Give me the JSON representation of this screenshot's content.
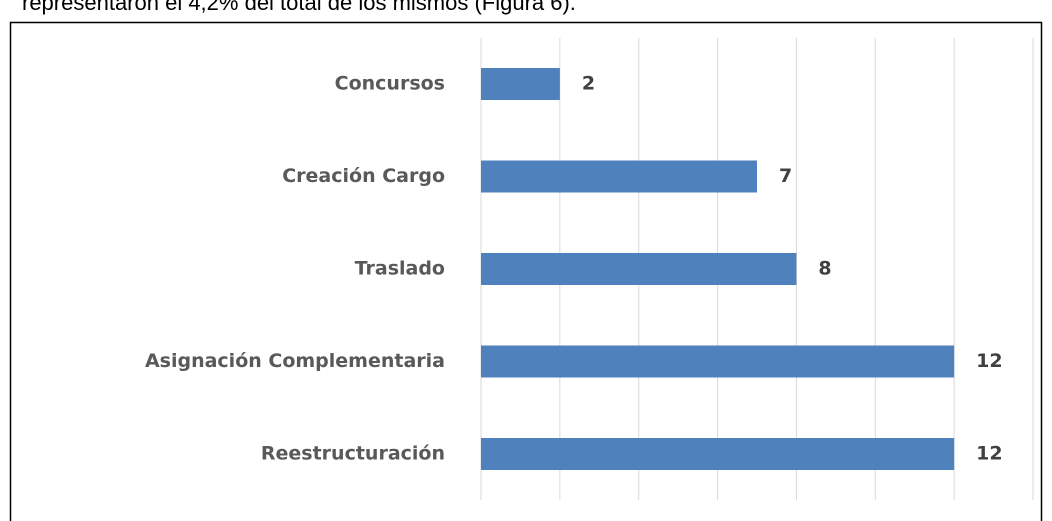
{
  "header_text": "representaron el 4,2% del total de los mismos (Figura 6).",
  "chart_data": {
    "type": "bar",
    "orientation": "horizontal",
    "categories": [
      "Concursos",
      "Creación Cargo",
      "Traslado",
      "Asignación Complementaria",
      "Reestructuración"
    ],
    "values": [
      2,
      7,
      8,
      12,
      12
    ],
    "color": "#4f81bd",
    "xlim": [
      0,
      14
    ],
    "xticks": [
      0,
      2,
      4,
      6,
      8,
      10,
      12,
      14
    ],
    "grid": true
  }
}
